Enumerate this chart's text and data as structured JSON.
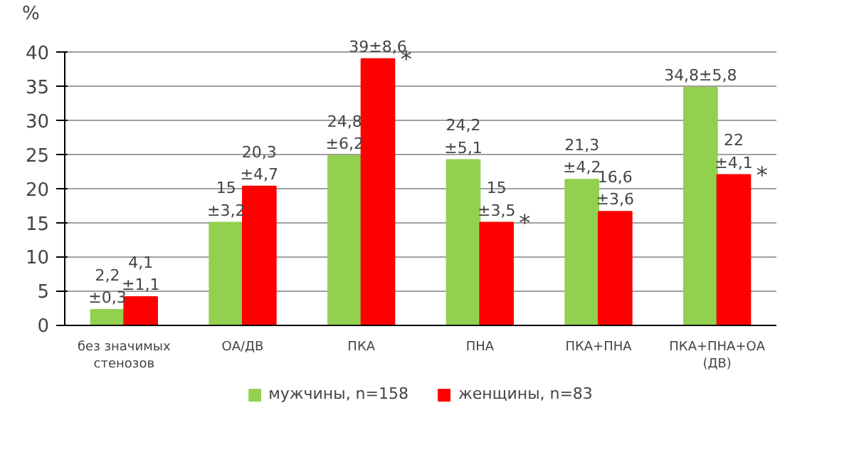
{
  "chart_data": {
    "type": "bar",
    "ylabel": "%",
    "categories": [
      "без значимых\nстенозов",
      "ОА/ДВ",
      "ПКА",
      "ПНА",
      "ПКА+ПНА",
      "ПКА+ПНА+ОА\n(ДВ)"
    ],
    "series": [
      {
        "name": "мужчины, n=158",
        "color": "#92d050",
        "values": [
          2.2,
          15,
          24.8,
          24.2,
          21.3,
          34.8
        ],
        "value_labels": [
          "2,2\n±0,3",
          "15\n±3,2",
          "24,8\n±6,2",
          "24,2\n±5,1",
          "21,3\n±4,2",
          "34,8±5,8"
        ]
      },
      {
        "name": "женщины, n=83",
        "color": "#ff0000",
        "values": [
          4.1,
          20.3,
          39,
          15,
          16.6,
          22
        ],
        "value_labels": [
          "4,1\n±1,1",
          "20,3\n±4,7",
          "39±8,6",
          "15\n±3,5",
          "16,6\n±3,6",
          "22\n±4,1"
        ]
      }
    ],
    "annotations": [
      {
        "text": "*",
        "x": "ПКА",
        "y": 39
      },
      {
        "text": "*",
        "x": "ПНА",
        "y": 15
      },
      {
        "text": "*",
        "x": "ПКА+ПНА+ОА\n(ДВ)",
        "y": 22
      }
    ],
    "ylim": [
      0,
      40
    ],
    "yticks": [
      0,
      5,
      10,
      15,
      20,
      25,
      30,
      35,
      40
    ],
    "grid": "y",
    "legend": "bottom"
  }
}
